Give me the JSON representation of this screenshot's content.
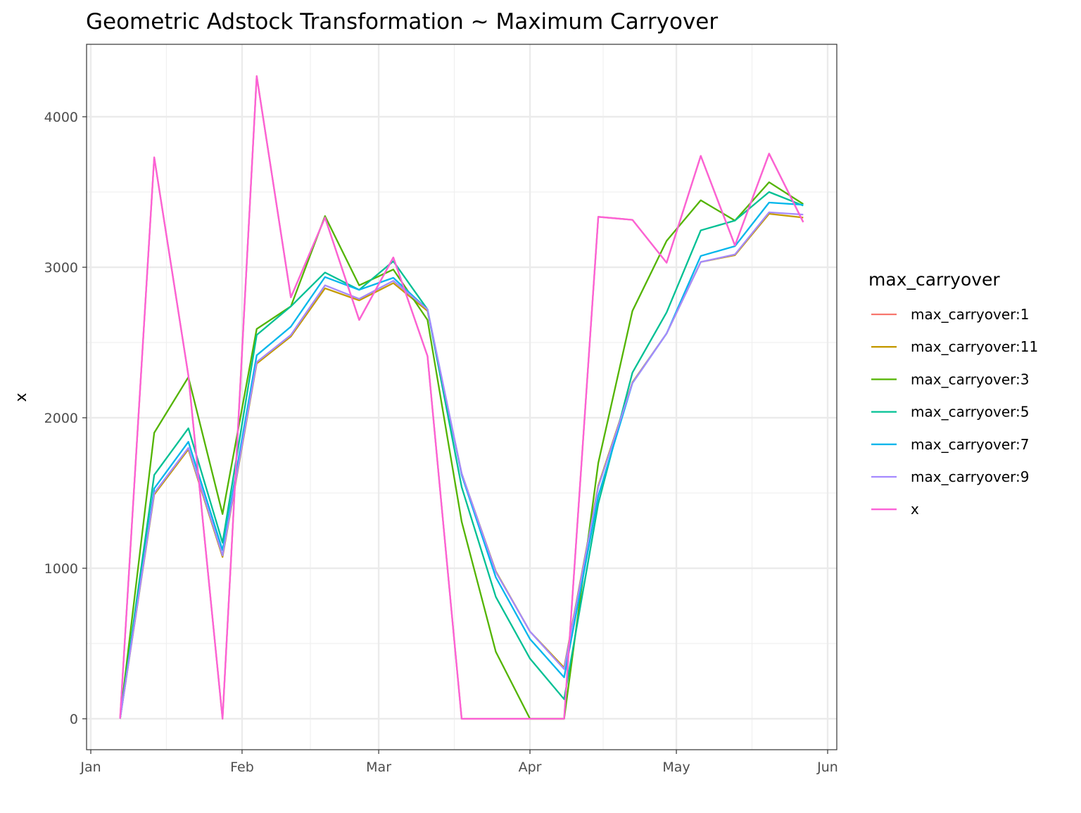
{
  "chart_data": {
    "type": "line",
    "title": "Geometric Adstock Transformation ~ Maximum Carryover",
    "xlabel": "",
    "ylabel": "x",
    "ylim": [
      -200,
      4480
    ],
    "y_ticks": [
      0,
      1000,
      2000,
      3000,
      4000
    ],
    "y_tick_labels": [
      "0",
      "1000",
      "2000",
      "3000",
      "4000"
    ],
    "x_tick_labels": [
      "Jan",
      "Feb",
      "Mar",
      "Apr",
      "May",
      "Jun"
    ],
    "x_tick_days": [
      0,
      31,
      59,
      90,
      120,
      151
    ],
    "grid": true,
    "legend": {
      "title": "max_carryover",
      "placement": "right"
    },
    "x": [
      "2018-01-07",
      "2018-01-14",
      "2018-01-21",
      "2018-01-28",
      "2018-02-04",
      "2018-02-11",
      "2018-02-18",
      "2018-02-25",
      "2018-03-04",
      "2018-03-11",
      "2018-03-18",
      "2018-03-25",
      "2018-04-01",
      "2018-04-08",
      "2018-04-15",
      "2018-04-22",
      "2018-04-29",
      "2018-05-06",
      "2018-05-13",
      "2018-05-20",
      "2018-05-27"
    ],
    "x_days": [
      6,
      13,
      20,
      27,
      34,
      41,
      48,
      55,
      62,
      69,
      76,
      83,
      90,
      97,
      104,
      111,
      118,
      125,
      132,
      139,
      146
    ],
    "series": [
      {
        "name": "max_carryover:1",
        "color": "#F8766D",
        "values": [
          0,
          3730,
          2280,
          0,
          4270,
          2800,
          3330,
          2650,
          3065,
          2410,
          0,
          0,
          0,
          0,
          3335,
          3315,
          3030,
          3740,
          3145,
          3755,
          3300
        ]
      },
      {
        "name": "max_carryover:11",
        "color": "#C49A00",
        "values": [
          0,
          1490,
          1790,
          1075,
          2360,
          2540,
          2860,
          2780,
          2895,
          2710,
          1630,
          980,
          580,
          340,
          1550,
          2235,
          2560,
          3035,
          3080,
          3355,
          3330
        ]
      },
      {
        "name": "max_carryover:3",
        "color": "#53B400",
        "values": [
          0,
          1900,
          2270,
          1360,
          2590,
          2740,
          3340,
          2880,
          2985,
          2650,
          1310,
          445,
          0,
          0,
          1700,
          2710,
          3175,
          3445,
          3310,
          3565,
          3420
        ]
      },
      {
        "name": "max_carryover:5",
        "color": "#00C094",
        "values": [
          0,
          1620,
          1930,
          1170,
          2550,
          2740,
          2965,
          2850,
          3040,
          2720,
          1540,
          810,
          400,
          130,
          1430,
          2300,
          2700,
          3245,
          3310,
          3500,
          3410
        ]
      },
      {
        "name": "max_carryover:7",
        "color": "#00B6EB",
        "values": [
          0,
          1530,
          1840,
          1120,
          2415,
          2605,
          2935,
          2850,
          2930,
          2720,
          1620,
          940,
          530,
          275,
          1480,
          2230,
          2560,
          3075,
          3140,
          3430,
          3415
        ]
      },
      {
        "name": "max_carryover:9",
        "color": "#A58AFF",
        "values": [
          0,
          1500,
          1800,
          1085,
          2370,
          2550,
          2880,
          2790,
          2910,
          2720,
          1630,
          975,
          580,
          330,
          1540,
          2230,
          2560,
          3035,
          3085,
          3365,
          3350
        ]
      },
      {
        "name": "x",
        "color": "#FB61D7",
        "values": [
          0,
          3730,
          2280,
          0,
          4270,
          2800,
          3330,
          2650,
          3065,
          2410,
          0,
          0,
          0,
          0,
          3335,
          3315,
          3030,
          3740,
          3145,
          3755,
          3300
        ]
      }
    ]
  }
}
